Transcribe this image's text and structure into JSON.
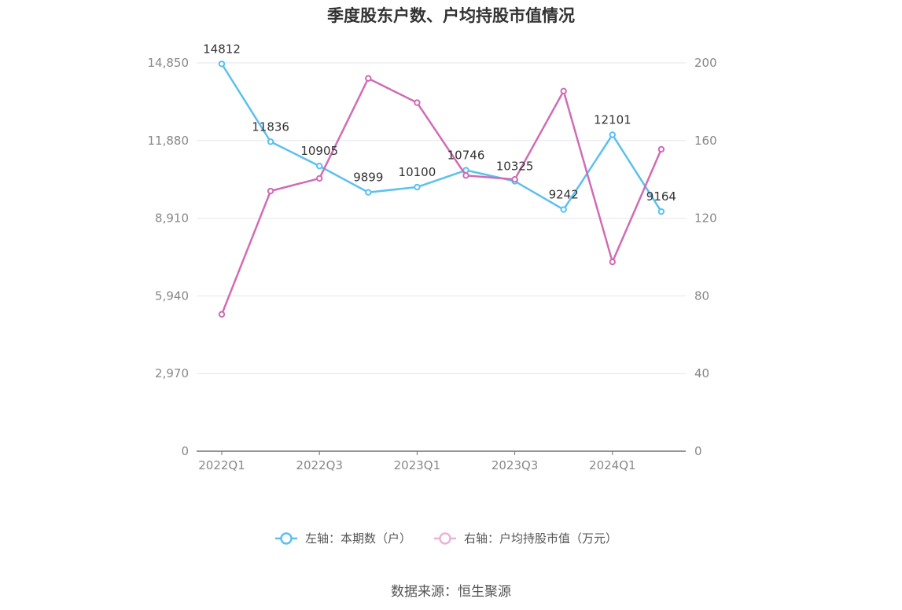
{
  "title": "季度股东户数、户均持股市值情况",
  "source": "数据来源：恒生聚源",
  "chart_data": {
    "type": "line",
    "title": "季度股东户数、户均持股市值情况",
    "categories": [
      "2022Q1",
      "2022Q2",
      "2022Q3",
      "2022Q4",
      "2023Q1",
      "2023Q2",
      "2023Q3",
      "2023Q4",
      "2024Q1",
      "2024Q2"
    ],
    "x_tick_labels": [
      "2022Q1",
      "2022Q3",
      "2023Q1",
      "2023Q3",
      "2024Q1"
    ],
    "left_axis": {
      "ylim": [
        0,
        14850
      ],
      "ticks": [
        "0",
        "2,970",
        "5,940",
        "8,910",
        "11,880",
        "14,850"
      ]
    },
    "right_axis": {
      "ylim": [
        0,
        200
      ],
      "ticks": [
        "0",
        "40",
        "80",
        "120",
        "160",
        "200"
      ]
    },
    "grid": true,
    "legend_position": "bottom",
    "series": [
      {
        "name": "左轴：本期数（户）",
        "axis": "left",
        "color": "#5bc0f0",
        "values": [
          14812,
          11836,
          10905,
          9899,
          10100,
          10746,
          10325,
          9242,
          12101,
          9164
        ],
        "labels": [
          "14812",
          "11836",
          "10905",
          "9899",
          "10100",
          "10746",
          "10325",
          "9242",
          "12101",
          "9164"
        ]
      },
      {
        "name": "右轴：户均持股市值（万元）",
        "axis": "right",
        "color": "#d06cb4",
        "values": [
          70.5,
          134,
          140.5,
          192,
          179.5,
          142,
          140,
          185.5,
          97.5,
          155.5
        ]
      }
    ]
  }
}
